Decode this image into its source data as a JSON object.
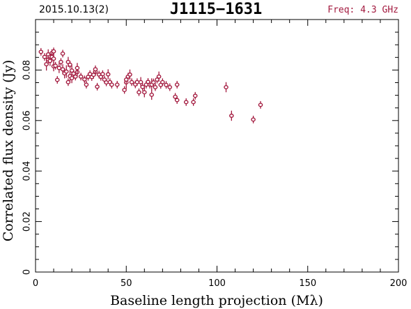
{
  "header": {
    "date": "2015.10.13(2)",
    "source": "J1115−1631",
    "freq": "Freq: 4.3 GHz"
  },
  "colors": {
    "data": "#a31a3f",
    "axes": "#000000"
  },
  "chart_data": {
    "type": "scatter",
    "xlabel": "Baseline length projection (Mλ)",
    "ylabel": "Correlated flux density (Jy)",
    "xlim": [
      0,
      200
    ],
    "ylim": [
      0,
      0.1
    ],
    "xticks": [
      0,
      50,
      100,
      150,
      200
    ],
    "xtick_labels": [
      "0",
      "50",
      "100",
      "150",
      "200"
    ],
    "yticks": [
      0,
      0.02,
      0.04,
      0.06,
      0.08
    ],
    "ytick_labels": [
      "0",
      "0.02",
      "0.04",
      "0.06",
      "0.08"
    ],
    "grid": false,
    "error_bars": true,
    "x": [
      3,
      5,
      6,
      7,
      7,
      8,
      8,
      9,
      9,
      10,
      10,
      10,
      11,
      12,
      13,
      14,
      15,
      15,
      16,
      17,
      18,
      18,
      19,
      19,
      20,
      20,
      21,
      22,
      23,
      23,
      25,
      27,
      28,
      29,
      30,
      31,
      32,
      33,
      33,
      34,
      35,
      36,
      37,
      38,
      39,
      40,
      41,
      42,
      45,
      49,
      50,
      50,
      51,
      52,
      53,
      55,
      56,
      57,
      58,
      59,
      60,
      61,
      62,
      63,
      64,
      64,
      65,
      66,
      67,
      68,
      69,
      70,
      72,
      74,
      77,
      78,
      78,
      83,
      87,
      88,
      105,
      108,
      120,
      124
    ],
    "y": [
      0.0872,
      0.0852,
      0.0823,
      0.0842,
      0.0862,
      0.0853,
      0.0836,
      0.0867,
      0.0852,
      0.0815,
      0.0874,
      0.0845,
      0.0817,
      0.0761,
      0.0808,
      0.0832,
      0.0865,
      0.0803,
      0.0787,
      0.0794,
      0.0752,
      0.0832,
      0.0821,
      0.0776,
      0.0768,
      0.0798,
      0.0786,
      0.0774,
      0.0792,
      0.0808,
      0.0774,
      0.0763,
      0.0742,
      0.0773,
      0.0784,
      0.0772,
      0.0781,
      0.0793,
      0.0803,
      0.0734,
      0.0782,
      0.0773,
      0.0784,
      0.0762,
      0.0751,
      0.0783,
      0.0752,
      0.0742,
      0.0742,
      0.0721,
      0.0751,
      0.0762,
      0.0774,
      0.0782,
      0.0752,
      0.0743,
      0.0752,
      0.0712,
      0.0752,
      0.0733,
      0.0712,
      0.0742,
      0.0753,
      0.0742,
      0.0702,
      0.0742,
      0.0751,
      0.0732,
      0.0762,
      0.0774,
      0.0741,
      0.0752,
      0.0741,
      0.0732,
      0.0694,
      0.0681,
      0.0742,
      0.0673,
      0.0673,
      0.0698,
      0.0732,
      0.0619,
      0.0604,
      0.0662
    ],
    "err": [
      0.0015,
      0.0015,
      0.0025,
      0.002,
      0.002,
      0.0015,
      0.002,
      0.0015,
      0.002,
      0.002,
      0.0015,
      0.002,
      0.0015,
      0.0015,
      0.002,
      0.0015,
      0.0015,
      0.002,
      0.002,
      0.0025,
      0.0015,
      0.002,
      0.0015,
      0.002,
      0.002,
      0.002,
      0.0015,
      0.0015,
      0.002,
      0.002,
      0.0015,
      0.0015,
      0.0015,
      0.0015,
      0.0015,
      0.0015,
      0.0015,
      0.0015,
      0.0015,
      0.0015,
      0.0015,
      0.0015,
      0.0015,
      0.0015,
      0.0015,
      0.002,
      0.0015,
      0.0015,
      0.0015,
      0.0015,
      0.0025,
      0.0015,
      0.0015,
      0.002,
      0.0015,
      0.0015,
      0.0015,
      0.0015,
      0.002,
      0.0015,
      0.002,
      0.0015,
      0.0015,
      0.0015,
      0.002,
      0.0025,
      0.0015,
      0.0015,
      0.0015,
      0.002,
      0.0015,
      0.0015,
      0.0015,
      0.0015,
      0.0015,
      0.0015,
      0.0015,
      0.0015,
      0.0015,
      0.0015,
      0.002,
      0.002,
      0.0015,
      0.0015
    ]
  }
}
